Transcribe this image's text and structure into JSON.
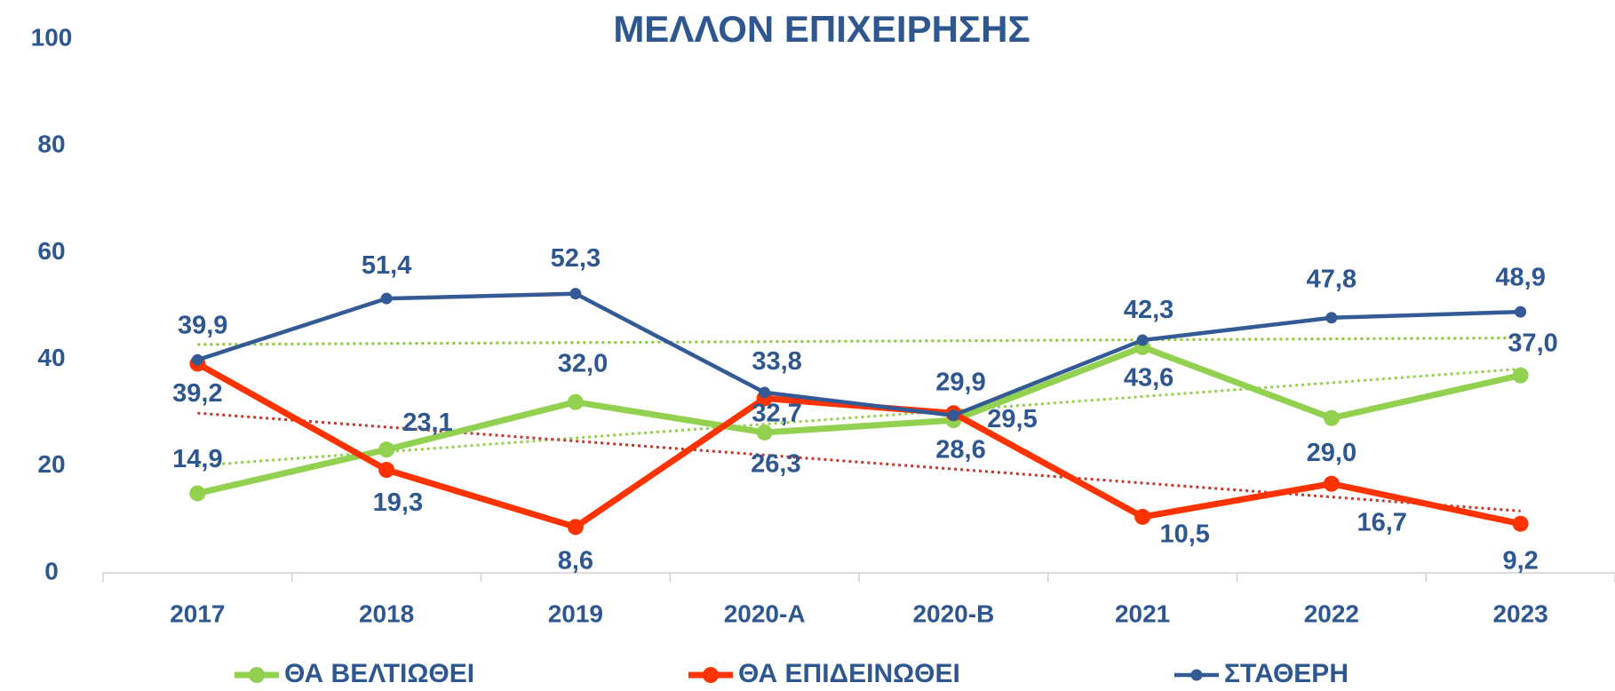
{
  "chart_data": {
    "type": "line",
    "title": "ΜΕΛΛΟΝ ΕΠΙΧΕΙΡΗΣΗΣ",
    "categories": [
      "2017",
      "2018",
      "2019",
      "2020-A",
      "2020-B",
      "2021",
      "2022",
      "2023"
    ],
    "ylim": [
      0,
      100
    ],
    "yticks": [
      0,
      20,
      40,
      60,
      80,
      100
    ],
    "grid": false,
    "legend": "bottom",
    "trendline": true,
    "series": [
      {
        "name": "ΘΑ ΒΕΛΤΙΩΘΕΙ",
        "color": "#92d050",
        "trend_color": "#92d050",
        "values": [
          14.9,
          23.1,
          32.0,
          26.3,
          28.6,
          42.3,
          29.0,
          37.0
        ],
        "value_labels": [
          "14,9",
          "23,1",
          "32,0",
          "26,3",
          "28,6",
          "42,3",
          "29,0",
          "37,0"
        ]
      },
      {
        "name": "ΘΑ ΕΠΙΔΕΙΝΩΘΕΙ",
        "color": "#ff3300",
        "trend_color": "#c0392b",
        "values": [
          39.2,
          19.3,
          8.6,
          32.7,
          29.9,
          10.5,
          16.7,
          9.2
        ],
        "value_labels": [
          "39,2",
          "19,3",
          "8,6",
          "32,7",
          "29,9",
          "10,5",
          "16,7",
          "9,2"
        ]
      },
      {
        "name": "ΣΤΑΘΕΡΗ",
        "color": "#335a94",
        "trend_color": "#8dc63f",
        "values": [
          39.9,
          51.4,
          52.3,
          33.8,
          29.5,
          43.6,
          47.8,
          48.9
        ],
        "value_labels": [
          "39,9",
          "51,4",
          "52,3",
          "33,8",
          "29,5",
          "43,6",
          "47,8",
          "48,9"
        ]
      }
    ]
  }
}
